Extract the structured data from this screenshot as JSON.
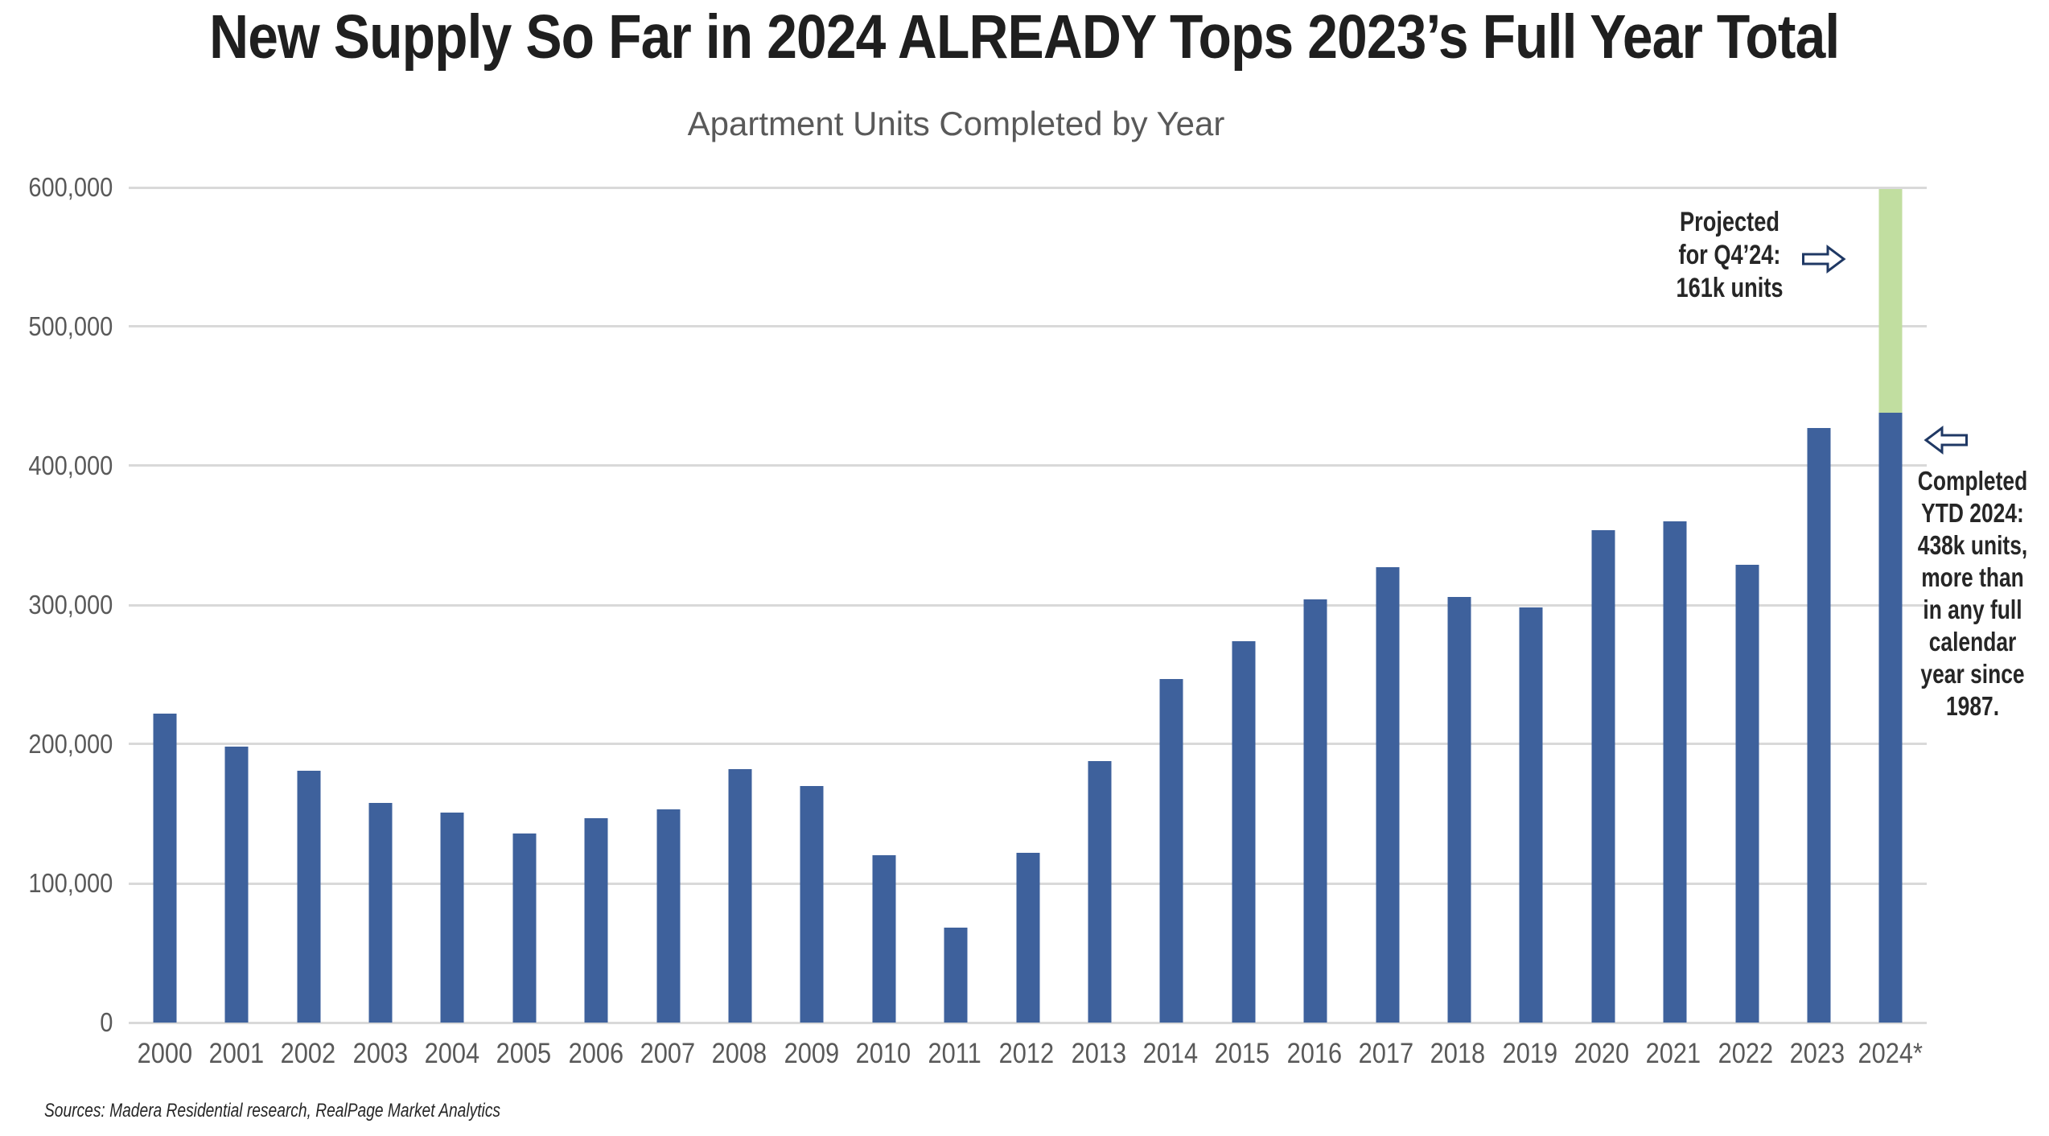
{
  "chart_data": {
    "type": "bar",
    "title": "New Supply So Far in 2024 ALREADY Tops 2023’s Full Year Total",
    "subtitle": "Apartment Units Completed by Year",
    "xlabel": "",
    "ylabel": "",
    "ylim": [
      0,
      600000
    ],
    "ytick_interval": 100000,
    "yticks": [
      "600,000",
      "500,000",
      "400,000",
      "300,000",
      "200,000",
      "100,000",
      "0"
    ],
    "grid": "horizontal",
    "legend": "none",
    "categories": [
      "2000",
      "2001",
      "2002",
      "2003",
      "2004",
      "2005",
      "2006",
      "2007",
      "2008",
      "2009",
      "2010",
      "2011",
      "2012",
      "2013",
      "2014",
      "2015",
      "2016",
      "2017",
      "2018",
      "2019",
      "2020",
      "2021",
      "2022",
      "2023",
      "2024*"
    ],
    "series": [
      {
        "name": "Completed units",
        "color": "#3E619C",
        "values": [
          222000,
          198000,
          181000,
          158000,
          151000,
          136000,
          147000,
          153000,
          182000,
          170000,
          120000,
          68000,
          122000,
          188000,
          247000,
          274000,
          304000,
          327000,
          306000,
          298000,
          354000,
          360000,
          329000,
          427000,
          438000
        ]
      },
      {
        "name": "Projected Q4 2024",
        "color": "#C1DEA0",
        "values": [
          0,
          0,
          0,
          0,
          0,
          0,
          0,
          0,
          0,
          0,
          0,
          0,
          0,
          0,
          0,
          0,
          0,
          0,
          0,
          0,
          0,
          0,
          0,
          0,
          161000
        ]
      }
    ]
  },
  "annotations": {
    "projected": {
      "text": "Projected\nfor Q4’24:\n161k units",
      "icon": "right-block-arrow"
    },
    "completed": {
      "text": "Completed\nYTD 2024:\n438k units,\nmore than\nin any full\ncalendar\nyear since\n1987.",
      "icon": "left-block-arrow"
    }
  },
  "source": "Sources: Madera Residential research, RealPage Market Analytics",
  "colors": {
    "bar_blue": "#3E619C",
    "bar_green": "#C1DEA0",
    "arrow_outline": "#1F3864",
    "gridline": "#D9D9D9",
    "axis_text": "#595959",
    "title_text": "#1F1F1F",
    "annotation_text": "#262626"
  }
}
